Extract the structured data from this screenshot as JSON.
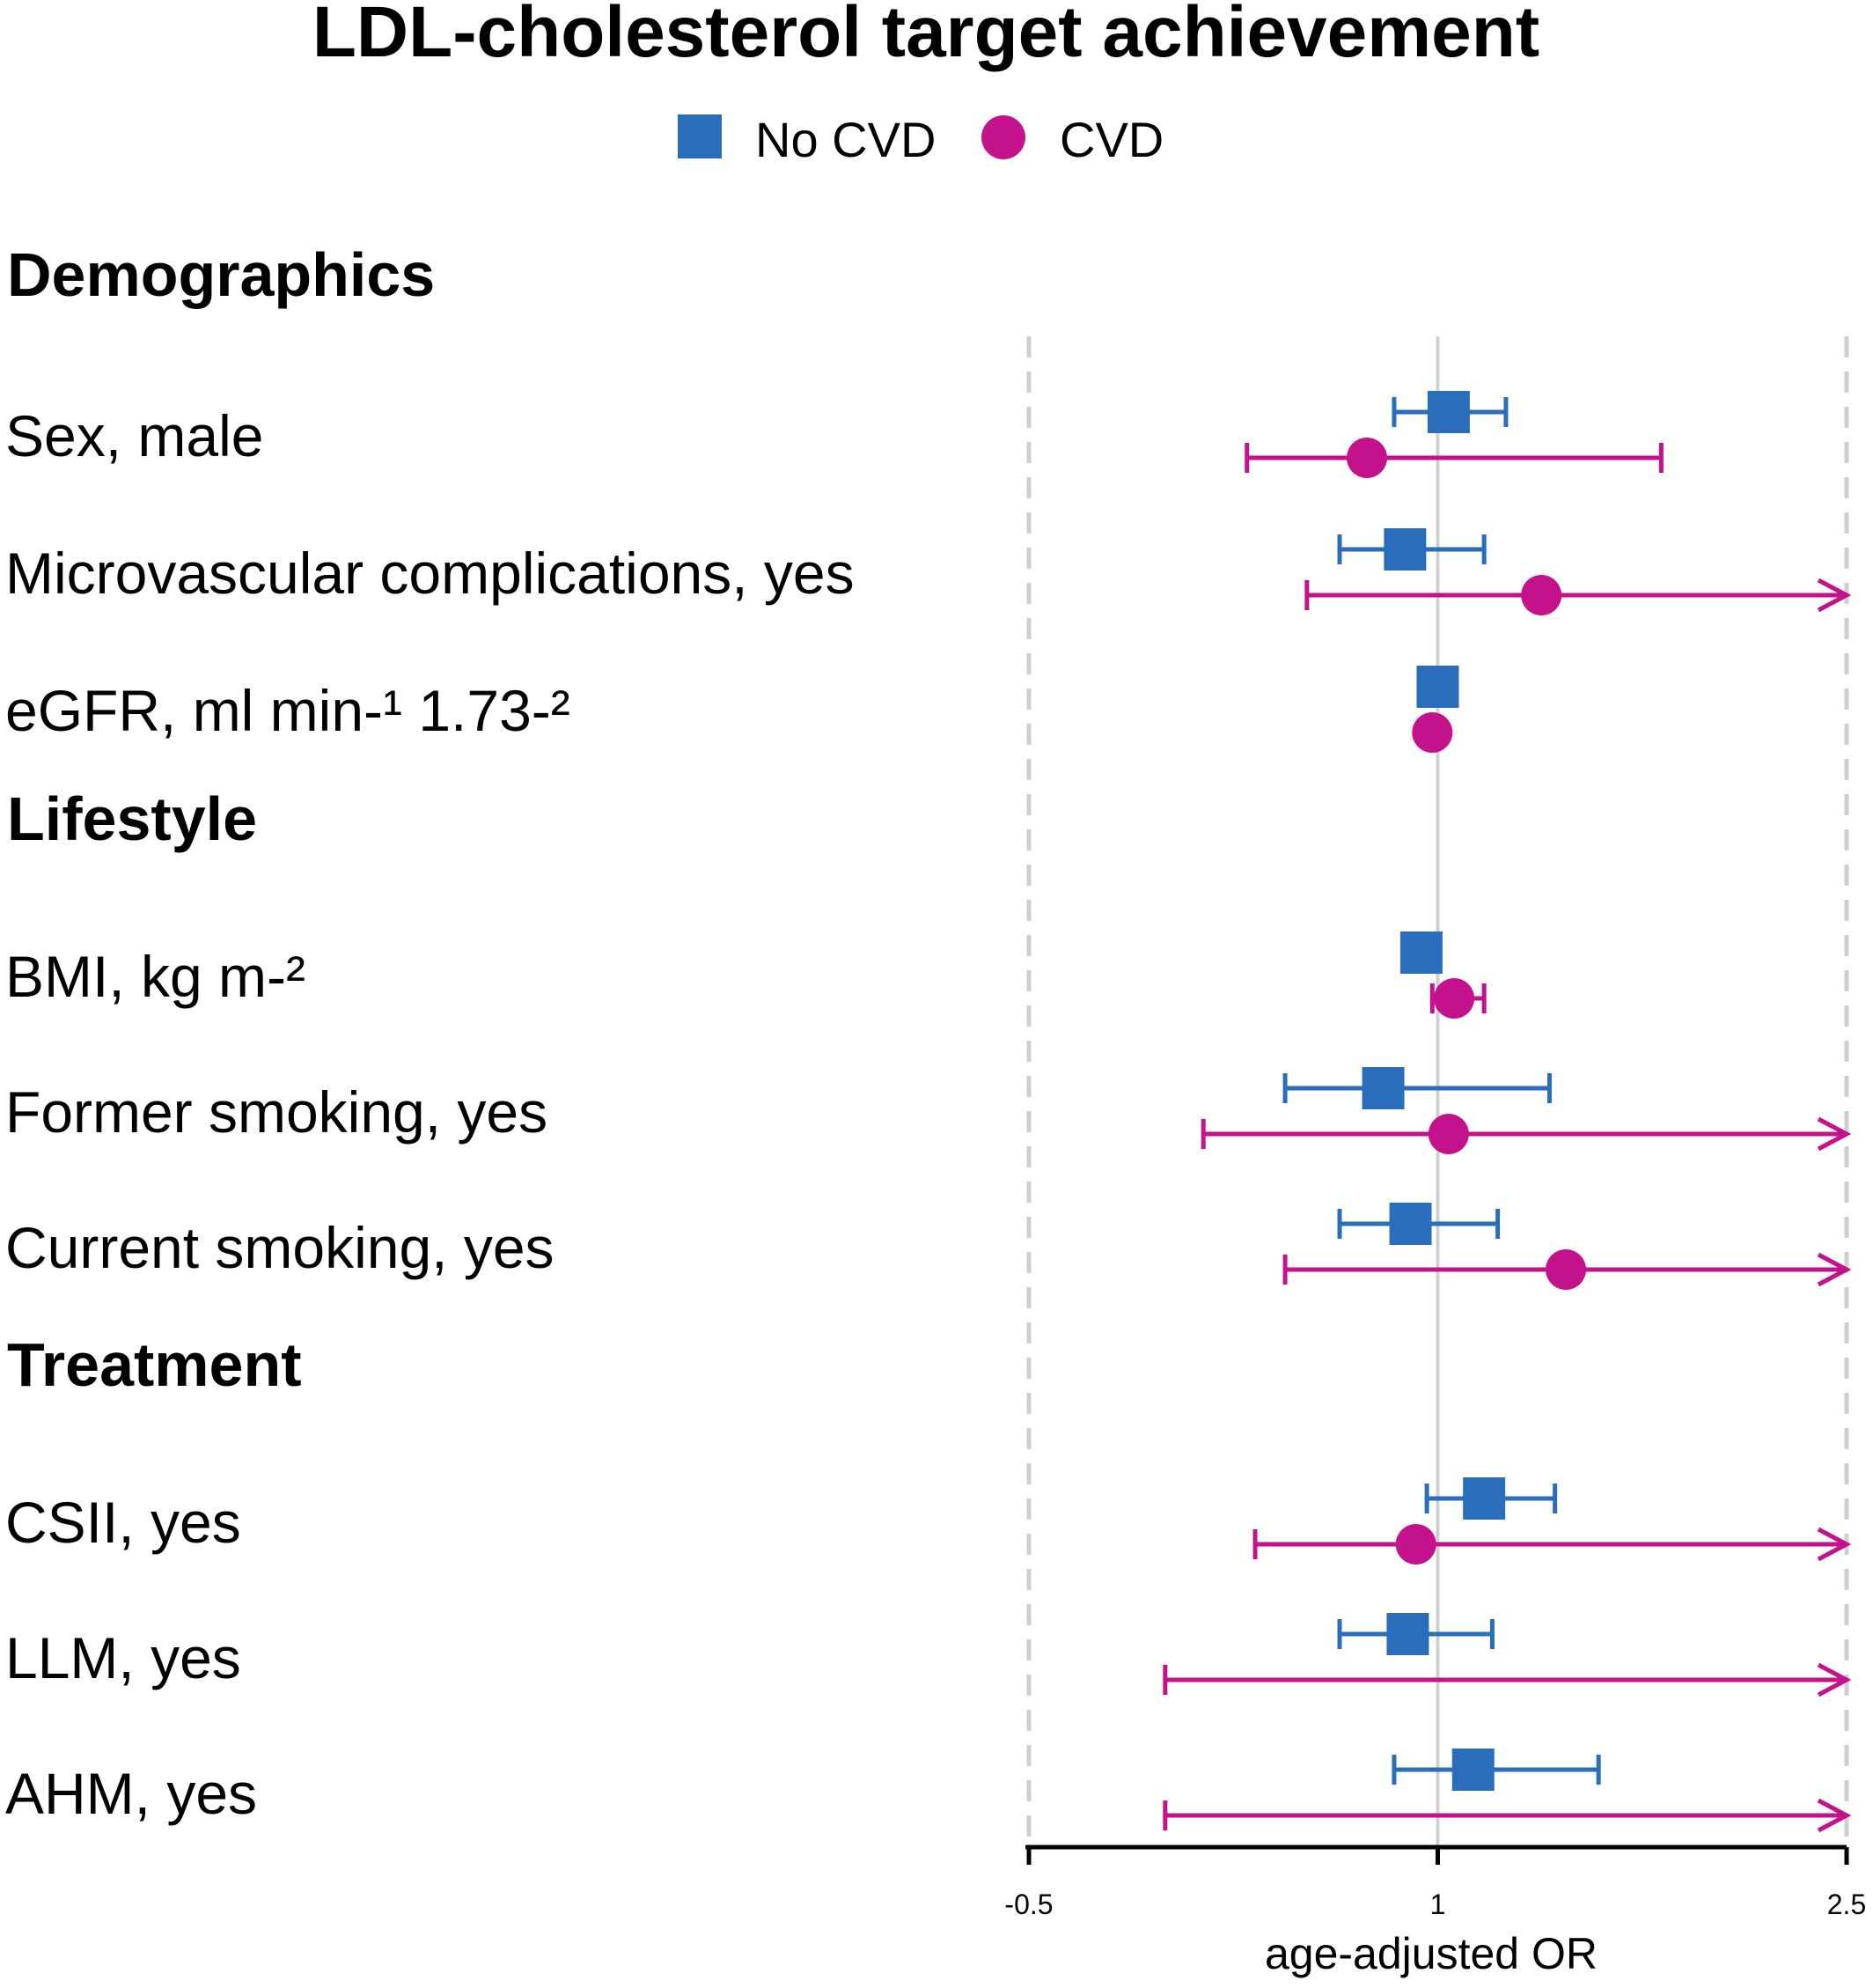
{
  "chart_data": {
    "type": "forest",
    "title": "LDL-cholesterol target achievement",
    "xlabel": "age-adjusted OR",
    "x_ticks": [
      {
        "value": -0.5,
        "label": "-0.5"
      },
      {
        "value": 1,
        "label": "1"
      },
      {
        "value": 2.5,
        "label": "2.5"
      }
    ],
    "xlim": [
      -0.5,
      2.5
    ],
    "reference_line": 1,
    "series": [
      {
        "name": "No CVD",
        "color": "#2a6ebb",
        "marker": "square"
      },
      {
        "name": "CVD",
        "color": "#c4128c",
        "marker": "circle"
      }
    ],
    "rows": [
      {
        "kind": "group",
        "label": "Demographics"
      },
      {
        "kind": "item",
        "label": "Sex, male",
        "no_cvd": {
          "est": 1.04,
          "lo": 0.84,
          "hi": 1.25
        },
        "cvd": {
          "est": 0.74,
          "lo": 0.3,
          "hi": 1.82
        }
      },
      {
        "kind": "item",
        "label": "Microvascular complications, yes",
        "no_cvd": {
          "est": 0.88,
          "lo": 0.64,
          "hi": 1.17
        },
        "cvd": {
          "est": 1.38,
          "lo": 0.52,
          "hi": 2.5
        }
      },
      {
        "kind": "item",
        "label": "eGFR, ml min-¹ 1.73-²",
        "no_cvd": {
          "est": 1.0,
          "lo": 1.0,
          "hi": 1.0
        },
        "cvd": {
          "est": 0.98,
          "lo": 0.98,
          "hi": 0.98
        }
      },
      {
        "kind": "group",
        "label": "Lifestyle"
      },
      {
        "kind": "item",
        "label": "BMI, kg m-²",
        "no_cvd": {
          "est": 0.94,
          "lo": 0.94,
          "hi": 0.94
        },
        "cvd": {
          "est": 1.06,
          "lo": 0.98,
          "hi": 1.17
        }
      },
      {
        "kind": "item",
        "label": "Former smoking, yes",
        "no_cvd": {
          "est": 0.8,
          "lo": 0.44,
          "hi": 1.41
        },
        "cvd": {
          "est": 1.04,
          "lo": 0.14,
          "hi": 2.5
        }
      },
      {
        "kind": "item",
        "label": "Current smoking, yes",
        "no_cvd": {
          "est": 0.9,
          "lo": 0.64,
          "hi": 1.22
        },
        "cvd": {
          "est": 1.47,
          "lo": 0.44,
          "hi": 2.5
        }
      },
      {
        "kind": "group",
        "label": "Treatment"
      },
      {
        "kind": "item",
        "label": "CSII, yes",
        "no_cvd": {
          "est": 1.17,
          "lo": 0.96,
          "hi": 1.43
        },
        "cvd": {
          "est": 0.92,
          "lo": 0.33,
          "hi": 2.5
        }
      },
      {
        "kind": "item",
        "label": "LLM, yes",
        "no_cvd": {
          "est": 0.89,
          "lo": 0.64,
          "hi": 1.2
        },
        "cvd": {
          "est": null,
          "lo": 0.0,
          "hi": 2.5
        }
      },
      {
        "kind": "item",
        "label": "AHM, yes",
        "no_cvd": {
          "est": 1.13,
          "lo": 0.84,
          "hi": 1.59
        },
        "cvd": {
          "est": null,
          "lo": 0.0,
          "hi": 2.5
        }
      }
    ]
  }
}
